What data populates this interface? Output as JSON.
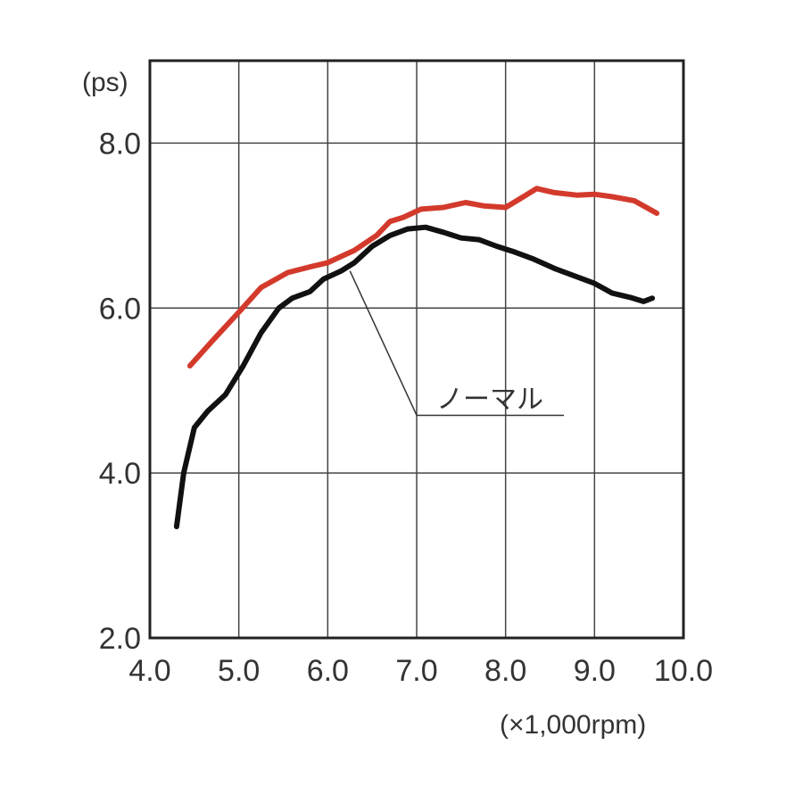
{
  "chart_data": {
    "type": "line",
    "ylabel": "(ps)",
    "xlabel": "(×1,000rpm)",
    "xlim": [
      4.0,
      10.0
    ],
    "ylim": [
      2.0,
      9.0
    ],
    "x_ticks": [
      "4.0",
      "5.0",
      "6.0",
      "7.0",
      "8.0",
      "9.0",
      "10.0"
    ],
    "x_tick_values": [
      4,
      5,
      6,
      7,
      8,
      9,
      10
    ],
    "y_ticks": [
      "2.0",
      "4.0",
      "6.0",
      "8.0"
    ],
    "y_tick_values": [
      2,
      4,
      6,
      8
    ],
    "grid": true,
    "annotation": {
      "text": "ノーマル",
      "x": 7.0,
      "y": 4.7,
      "points_to": [
        6.25,
        6.45
      ]
    },
    "series": [
      {
        "name": "",
        "color": "#d33a2c",
        "x": [
          4.45,
          4.7,
          5.0,
          5.25,
          5.55,
          5.8,
          6.0,
          6.3,
          6.55,
          6.7,
          6.85,
          7.05,
          7.3,
          7.55,
          7.75,
          8.0,
          8.2,
          8.35,
          8.55,
          8.8,
          9.0,
          9.2,
          9.45,
          9.7
        ],
        "y": [
          5.3,
          5.6,
          5.95,
          6.25,
          6.43,
          6.5,
          6.55,
          6.7,
          6.88,
          7.05,
          7.1,
          7.2,
          7.22,
          7.28,
          7.24,
          7.22,
          7.35,
          7.45,
          7.4,
          7.37,
          7.38,
          7.35,
          7.3,
          7.15
        ]
      },
      {
        "name": "ノーマル",
        "color": "#111111",
        "x": [
          4.3,
          4.38,
          4.5,
          4.65,
          4.85,
          5.05,
          5.25,
          5.45,
          5.6,
          5.8,
          5.95,
          6.15,
          6.3,
          6.5,
          6.7,
          6.9,
          7.1,
          7.3,
          7.5,
          7.7,
          7.9,
          8.1,
          8.3,
          8.55,
          8.8,
          9.0,
          9.2,
          9.4,
          9.55,
          9.65
        ],
        "y": [
          3.35,
          4.0,
          4.55,
          4.75,
          4.95,
          5.3,
          5.7,
          6.0,
          6.12,
          6.2,
          6.35,
          6.45,
          6.55,
          6.75,
          6.88,
          6.96,
          6.98,
          6.92,
          6.85,
          6.83,
          6.75,
          6.68,
          6.6,
          6.48,
          6.38,
          6.3,
          6.18,
          6.13,
          6.08,
          6.12
        ]
      }
    ]
  }
}
